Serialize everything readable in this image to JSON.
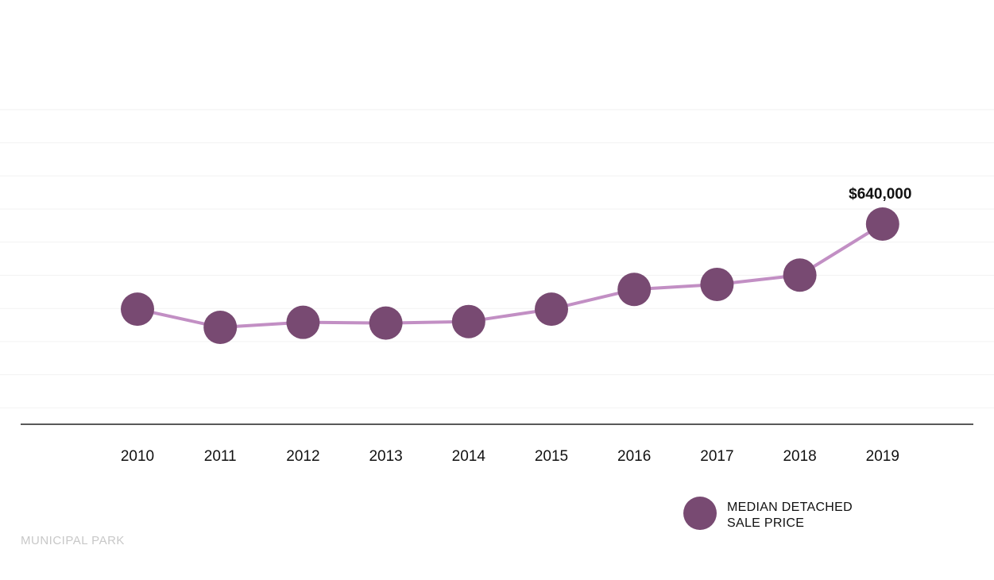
{
  "chart_data": {
    "type": "line",
    "x": [
      "2010",
      "2011",
      "2012",
      "2013",
      "2014",
      "2015",
      "2016",
      "2017",
      "2018",
      "2019"
    ],
    "series": [
      {
        "name": "MEDIAN DETACHED SALE PRICE",
        "values": [
          420000,
          373000,
          386000,
          384000,
          388000,
          420000,
          471000,
          484000,
          508000,
          640000
        ]
      }
    ],
    "annotations": [
      {
        "x": "2019",
        "text": "$640,000"
      }
    ],
    "legend": {
      "placement": "bottom-right",
      "lines": [
        "MEDIAN DETACHED",
        "SALE PRICE"
      ]
    },
    "grid": true,
    "colors": {
      "line": "#c28fc4",
      "marker": "#784a72",
      "axis": "#222222",
      "grid": "#f2f2f2"
    }
  },
  "source": "MUNICIPAL PARK"
}
